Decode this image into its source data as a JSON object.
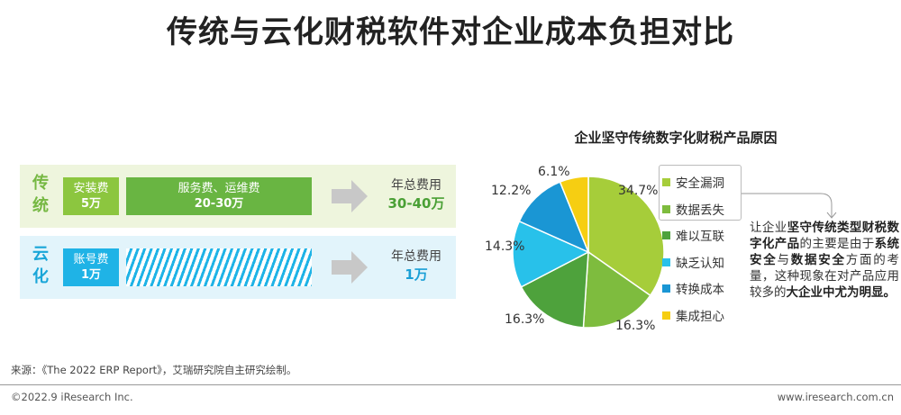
{
  "title": "传统与云化财税软件对企业成本负担对比",
  "comparison": {
    "traditional": {
      "label": "传统",
      "install_label": "安装费",
      "install_value": "5万",
      "service_label": "服务费、运维费",
      "service_value": "20-30万",
      "total_label": "年总费用",
      "total_value": "30-40万"
    },
    "cloud": {
      "label": "云化",
      "account_label": "账号费",
      "account_value": "1万",
      "total_label": "年总费用",
      "total_value": "1万"
    }
  },
  "chart_data": {
    "type": "pie",
    "title": "企业坚守传统数字化财税产品原因",
    "slices": [
      {
        "label": "安全漏洞",
        "value": 34.7,
        "display": "34.7%",
        "color": "#a6cd3a"
      },
      {
        "label": "数据丢失",
        "value": 16.3,
        "display": "16.3%",
        "color": "#7ebc3e"
      },
      {
        "label": "难以互联",
        "value": 16.3,
        "display": "16.3%",
        "color": "#4ea23c"
      },
      {
        "label": "缺乏认知",
        "value": 14.3,
        "display": "14.3%",
        "color": "#28c1ea"
      },
      {
        "label": "转换成本",
        "value": 12.2,
        "display": "12.2%",
        "color": "#1a96d4"
      },
      {
        "label": "集成担心",
        "value": 6.1,
        "display": "6.1%",
        "color": "#f6ce12"
      }
    ],
    "legend_position": "right"
  },
  "note": {
    "p1": "让企业",
    "b1": "坚守传统类型财税数字化产品",
    "p2": "的主要是由于",
    "b2": "系统安全",
    "p3": "与",
    "b3": "数据安全",
    "p4": "方面的考量，这种现象在对产品应用较多的",
    "b4": "大企业中尤为明显。"
  },
  "footer": {
    "source": "来源：《The 2022 ERP Report》，艾瑞研究院自主研究绘制。",
    "copyright": "©2022.9 iResearch Inc.",
    "website": "www.iresearch.com.cn"
  }
}
